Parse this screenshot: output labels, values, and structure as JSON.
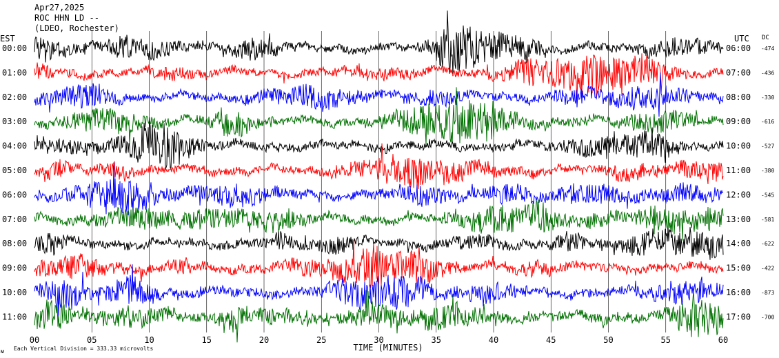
{
  "header": {
    "date": "Apr27,2025",
    "station": "ROC HHN LD --",
    "network": "(LDEO, Rochester)"
  },
  "axes": {
    "left_label": "EST",
    "right_label": "UTC",
    "dc_label": "DC",
    "xlabel": "TIME (MINUTES)"
  },
  "footer": {
    "scale_note": "Each Vertical Division = 333.33 microvolts",
    "mark": "ᴍ"
  },
  "colors": {
    "cycle": [
      "#000000",
      "#ff0000",
      "#0000ff",
      "#007000"
    ],
    "grid": "#000000",
    "text": "#000000"
  },
  "chart_data": {
    "type": "line",
    "subtype": "helicorder",
    "xlim": [
      0,
      60
    ],
    "x_ticks": [
      "00",
      "05",
      "10",
      "15",
      "20",
      "25",
      "30",
      "35",
      "40",
      "45",
      "50",
      "55",
      "60"
    ],
    "grid": true,
    "rows": [
      {
        "est": "00:00",
        "utc": "06:00",
        "dc": "-474",
        "color": "#000000",
        "seed": 11,
        "amp": 1.0
      },
      {
        "est": "01:00",
        "utc": "07:00",
        "dc": "-436",
        "color": "#ff0000",
        "seed": 23,
        "amp": 1.0
      },
      {
        "est": "02:00",
        "utc": "08:00",
        "dc": "-330",
        "color": "#0000ff",
        "seed": 37,
        "amp": 0.95
      },
      {
        "est": "03:00",
        "utc": "09:00",
        "dc": "-616",
        "color": "#007000",
        "seed": 41,
        "amp": 1.05
      },
      {
        "est": "04:00",
        "utc": "10:00",
        "dc": "-527",
        "color": "#000000",
        "seed": 53,
        "amp": 1.05
      },
      {
        "est": "05:00",
        "utc": "11:00",
        "dc": "-380",
        "color": "#ff0000",
        "seed": 67,
        "amp": 1.0
      },
      {
        "est": "06:00",
        "utc": "12:00",
        "dc": "-545",
        "color": "#0000ff",
        "seed": 71,
        "amp": 1.0
      },
      {
        "est": "07:00",
        "utc": "13:00",
        "dc": "-581",
        "color": "#007000",
        "seed": 83,
        "amp": 1.1
      },
      {
        "est": "08:00",
        "utc": "14:00",
        "dc": "-622",
        "color": "#000000",
        "seed": 97,
        "amp": 1.05
      },
      {
        "est": "09:00",
        "utc": "15:00",
        "dc": "-422",
        "color": "#ff0000",
        "seed": 101,
        "amp": 1.1
      },
      {
        "est": "10:00",
        "utc": "16:00",
        "dc": "-873",
        "color": "#0000ff",
        "seed": 113,
        "amp": 1.15
      },
      {
        "est": "11:00",
        "utc": "17:00",
        "dc": "-700",
        "color": "#007000",
        "seed": 127,
        "amp": 1.2
      }
    ]
  }
}
